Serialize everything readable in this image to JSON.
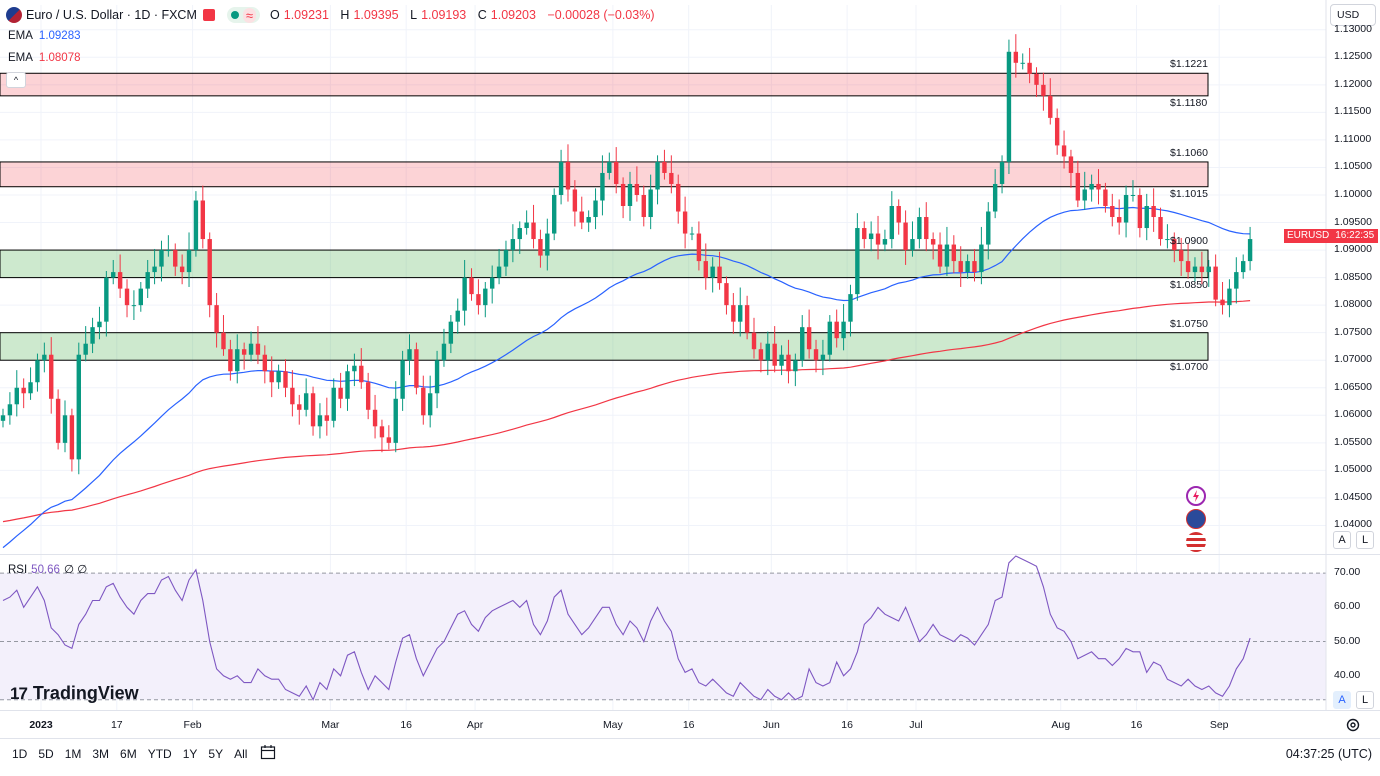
{
  "header": {
    "symbol_title": "Euro / U.S. Dollar · 1D · FXCM",
    "open_label": "O",
    "open": "1.09231",
    "high_label": "H",
    "high": "1.09395",
    "low_label": "L",
    "low": "1.09193",
    "close_label": "C",
    "close": "1.09203",
    "change": "−0.00028 (−0.03%)",
    "pill_icon": "wave-icon"
  },
  "indicators": {
    "ema1": {
      "name": "EMA",
      "value": "1.09283",
      "color": "#2962ff"
    },
    "ema2": {
      "name": "EMA",
      "value": "1.08078",
      "color": "#f23645"
    }
  },
  "currency_button": "USD",
  "price_tag": {
    "symbol": "EURUSD",
    "countdown": "16:22:35"
  },
  "rsi": {
    "name": "RSI",
    "value": "50.66",
    "extra1": "∅",
    "extra2": "∅",
    "color": "#7e57c2"
  },
  "branding": {
    "name": "TradingView"
  },
  "toolbar": {
    "ranges": [
      "1D",
      "5D",
      "1M",
      "3M",
      "6M",
      "YTD",
      "1Y",
      "5Y",
      "All"
    ],
    "clock": "04:37:25 (UTC)"
  },
  "axis_buttons": {
    "auto": "A",
    "log": "L"
  },
  "chart_data": {
    "type": "candlestick",
    "ylim": [
      1.035,
      1.1305
    ],
    "y_ticks": [
      "1.13000",
      "1.12500",
      "1.12000",
      "1.11500",
      "1.11000",
      "1.10500",
      "1.10000",
      "1.09500",
      "1.09000",
      "1.08500",
      "1.08000",
      "1.07500",
      "1.07000",
      "1.06500",
      "1.06000",
      "1.05500",
      "1.05000",
      "1.04500",
      "1.04000"
    ],
    "x_labels": [
      {
        "label": "2023",
        "day": 0,
        "bold": true
      },
      {
        "label": "17",
        "day": 11
      },
      {
        "label": "Feb",
        "day": 22
      },
      {
        "label": "Mar",
        "day": 42
      },
      {
        "label": "16",
        "day": 53
      },
      {
        "label": "Apr",
        "day": 63
      },
      {
        "label": "May",
        "day": 83
      },
      {
        "label": "16",
        "day": 94
      },
      {
        "label": "Jun",
        "day": 106
      },
      {
        "label": "16",
        "day": 117
      },
      {
        "label": "Jul",
        "day": 127
      },
      {
        "label": "Aug",
        "day": 148
      },
      {
        "label": "16",
        "day": 159
      },
      {
        "label": "Sep",
        "day": 171
      }
    ],
    "levels": [
      {
        "label": "$1.1221",
        "value": 1.1221
      },
      {
        "label": "$1.1180",
        "value": 1.118
      },
      {
        "label": "$1.1060",
        "value": 1.106
      },
      {
        "label": "$1.1015",
        "value": 1.1015
      },
      {
        "label": "$1.0900",
        "value": 1.09
      },
      {
        "label": "$1.0850",
        "value": 1.085
      },
      {
        "label": "$1.0750",
        "value": 1.075
      },
      {
        "label": "$1.0700",
        "value": 1.07
      }
    ],
    "zones": [
      {
        "low": 1.118,
        "high": 1.1221,
        "kind": "resistance"
      },
      {
        "low": 1.1015,
        "high": 1.106,
        "kind": "resistance"
      },
      {
        "low": 1.085,
        "high": 1.09,
        "kind": "support"
      },
      {
        "low": 1.07,
        "high": 1.075,
        "kind": "support"
      }
    ],
    "series": [
      {
        "kind": "close",
        "values": [
          1.06,
          1.062,
          1.065,
          1.064,
          1.066,
          1.07,
          1.071,
          1.063,
          1.055,
          1.06,
          1.052,
          1.071,
          1.073,
          1.076,
          1.077,
          1.085,
          1.086,
          1.083,
          1.08,
          1.08,
          1.083,
          1.086,
          1.087,
          1.09,
          1.09,
          1.087,
          1.086,
          1.09,
          1.099,
          1.092,
          1.08,
          1.075,
          1.072,
          1.068,
          1.072,
          1.071,
          1.073,
          1.071,
          1.068,
          1.066,
          1.068,
          1.065,
          1.062,
          1.061,
          1.064,
          1.058,
          1.06,
          1.059,
          1.065,
          1.063,
          1.068,
          1.069,
          1.066,
          1.061,
          1.058,
          1.056,
          1.055,
          1.063,
          1.07,
          1.072,
          1.065,
          1.06,
          1.064,
          1.07,
          1.073,
          1.077,
          1.079,
          1.085,
          1.082,
          1.08,
          1.083,
          1.085,
          1.087,
          1.09,
          1.092,
          1.094,
          1.095,
          1.092,
          1.089,
          1.093,
          1.1,
          1.106,
          1.101,
          1.097,
          1.095,
          1.096,
          1.099,
          1.104,
          1.106,
          1.102,
          1.098,
          1.102,
          1.1,
          1.096,
          1.101,
          1.106,
          1.104,
          1.102,
          1.097,
          1.093,
          1.093,
          1.088,
          1.085,
          1.087,
          1.084,
          1.08,
          1.077,
          1.08,
          1.075,
          1.072,
          1.07,
          1.073,
          1.069,
          1.071,
          1.068,
          1.07,
          1.076,
          1.072,
          1.07,
          1.071,
          1.077,
          1.074,
          1.077,
          1.082,
          1.094,
          1.092,
          1.093,
          1.091,
          1.092,
          1.098,
          1.095,
          1.09,
          1.092,
          1.096,
          1.092,
          1.091,
          1.087,
          1.091,
          1.088,
          1.086,
          1.088,
          1.086,
          1.091,
          1.097,
          1.102,
          1.106,
          1.126,
          1.124,
          1.124,
          1.122,
          1.12,
          1.118,
          1.114,
          1.109,
          1.107,
          1.104,
          1.099,
          1.101,
          1.102,
          1.101,
          1.098,
          1.096,
          1.095,
          1.1,
          1.1,
          1.094,
          1.098,
          1.096,
          1.092,
          1.092,
          1.09,
          1.088,
          1.086,
          1.087,
          1.086,
          1.087,
          1.081,
          1.08,
          1.083,
          1.086,
          1.088,
          1.092
        ]
      },
      {
        "kind": "rsi",
        "values": [
          62,
          63,
          65,
          60,
          63,
          66,
          62,
          54,
          52,
          49,
          48,
          55,
          58,
          62,
          62,
          66,
          67,
          63,
          60,
          58,
          62,
          64,
          64,
          68,
          69,
          65,
          62,
          68,
          71,
          62,
          50,
          42,
          40,
          39,
          40,
          38,
          38,
          42,
          40,
          39,
          39,
          36,
          35,
          34,
          37,
          33,
          38,
          36,
          42,
          40,
          46,
          47,
          41,
          36,
          40,
          38,
          36,
          44,
          51,
          52,
          45,
          40,
          44,
          48,
          50,
          54,
          58,
          59,
          55,
          53,
          57,
          59,
          60,
          61,
          62,
          60,
          62,
          55,
          52,
          56,
          63,
          65,
          58,
          55,
          52,
          54,
          57,
          60,
          60,
          55,
          52,
          56,
          54,
          50,
          56,
          60,
          56,
          53,
          45,
          41,
          42,
          38,
          37,
          39,
          37,
          35,
          34,
          38,
          36,
          34,
          33,
          36,
          34,
          33,
          35,
          33,
          34,
          42,
          38,
          37,
          38,
          44,
          40,
          42,
          47,
          55,
          57,
          60,
          58,
          57,
          56,
          60,
          55,
          50,
          52,
          55,
          52,
          51,
          50,
          52,
          51,
          49,
          52,
          55,
          62,
          63,
          73,
          75,
          74,
          73,
          72,
          66,
          58,
          54,
          53,
          50,
          45,
          46,
          47,
          45,
          45,
          43,
          45,
          48,
          47,
          47,
          41,
          44,
          43,
          39,
          38,
          37,
          39,
          37,
          36,
          37,
          35,
          34,
          37,
          42,
          45,
          51
        ]
      },
      {
        "kind": "ema",
        "name": "EMA",
        "color": "#2962ff"
      },
      {
        "kind": "ema",
        "name": "EMA",
        "color": "#f23645"
      }
    ],
    "rsi_ylim": [
      30,
      75
    ],
    "rsi_ticks": [
      "70.00",
      "60.00",
      "50.00",
      "40.00"
    ],
    "colors": {
      "up": "#089981",
      "down": "#f23645",
      "rsi_band": "#f3f0fb"
    }
  }
}
